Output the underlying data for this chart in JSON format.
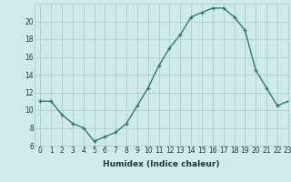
{
  "x": [
    0,
    1,
    2,
    3,
    4,
    5,
    6,
    7,
    8,
    9,
    10,
    11,
    12,
    13,
    14,
    15,
    16,
    17,
    18,
    19,
    20,
    21,
    22,
    23
  ],
  "y": [
    11.0,
    11.0,
    9.5,
    8.5,
    8.0,
    6.5,
    7.0,
    7.5,
    8.5,
    10.5,
    12.5,
    15.0,
    17.0,
    18.5,
    20.5,
    21.0,
    21.5,
    21.5,
    20.5,
    19.0,
    14.5,
    12.5,
    10.5,
    11.0
  ],
  "xlabel": "Humidex (Indice chaleur)",
  "ylim": [
    6,
    22
  ],
  "xlim": [
    -0.5,
    23
  ],
  "yticks": [
    6,
    8,
    10,
    12,
    14,
    16,
    18,
    20
  ],
  "xticks": [
    0,
    1,
    2,
    3,
    4,
    5,
    6,
    7,
    8,
    9,
    10,
    11,
    12,
    13,
    14,
    15,
    16,
    17,
    18,
    19,
    20,
    21,
    22,
    23
  ],
  "line_color": "#2e7d6e",
  "marker": "+",
  "markersize": 3.5,
  "linewidth": 1.0,
  "bg_color": "#ceeaea",
  "grid_color": "#aacece",
  "font_color": "#1a3a38",
  "xlabel_fontsize": 6.5,
  "tick_fontsize": 5.5
}
